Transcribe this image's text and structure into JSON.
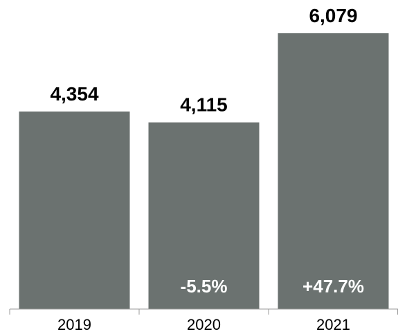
{
  "chart_data": {
    "type": "bar",
    "categories": [
      "2019",
      "2020",
      "2021"
    ],
    "values": [
      4354,
      4115,
      6079
    ],
    "value_labels": [
      "4,354",
      "4,115",
      "6,079"
    ],
    "change_labels": [
      "",
      "-5.5%",
      "+47.7%"
    ],
    "title": "",
    "xlabel": "",
    "ylabel": "",
    "ylim": [
      0,
      6079
    ],
    "grid": false,
    "bar_color": "#6b7270",
    "change_label_color": "#ffffff"
  }
}
